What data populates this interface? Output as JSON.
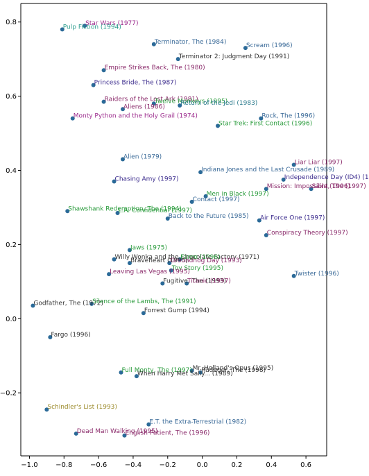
{
  "chart_data": {
    "type": "scatter",
    "title": "",
    "xlabel": "",
    "ylabel": "",
    "xlim": [
      -1.05,
      0.72
    ],
    "ylim": [
      -0.37,
      0.85
    ],
    "grid": false,
    "x_ticks": [
      -1.0,
      -0.8,
      -0.6,
      -0.4,
      -0.2,
      0.0,
      0.2,
      0.4,
      0.6
    ],
    "x_tick_labels": [
      "−1.0",
      "−0.8",
      "−0.6",
      "−0.4",
      "−0.2",
      "0.0",
      "0.2",
      "0.4",
      "0.6"
    ],
    "y_ticks": [
      -0.2,
      0.0,
      0.2,
      0.4,
      0.6,
      0.8
    ],
    "y_tick_labels": [
      "−0.2",
      "0.0",
      "0.2",
      "0.4",
      "0.6",
      "0.8"
    ],
    "point_color": "#2b6a98",
    "points": [
      {
        "label": "Star Wars (1977)",
        "x": -0.68,
        "y": 0.79,
        "color": "#9b2a8c"
      },
      {
        "label": "Pulp Fiction (1994)",
        "x": -0.81,
        "y": 0.78,
        "color": "#2a9b8c"
      },
      {
        "label": "Terminator, The (1984)",
        "x": -0.28,
        "y": 0.74,
        "color": "#3a6a98"
      },
      {
        "label": "Scream (1996)",
        "x": 0.25,
        "y": 0.73,
        "color": "#3a6a98"
      },
      {
        "label": "Terminator 2: Judgment Day (1991)",
        "x": -0.14,
        "y": 0.7,
        "color": "#333333"
      },
      {
        "label": "Empire Strikes Back, The (1980)",
        "x": -0.57,
        "y": 0.67,
        "color": "#8a2a6a"
      },
      {
        "label": "Princess Bride, The (1987)",
        "x": -0.63,
        "y": 0.63,
        "color": "#3a2a8c"
      },
      {
        "label": "Raiders of the Lost Ark (1981)",
        "x": -0.57,
        "y": 0.585,
        "color": "#8a2a6a"
      },
      {
        "label": "Twelve Monkeys (1995)",
        "x": -0.28,
        "y": 0.58,
        "color": "#2a9b3c"
      },
      {
        "label": "Return of the Jedi (1983)",
        "x": -0.13,
        "y": 0.575,
        "color": "#2a7a8c"
      },
      {
        "label": "Aliens (1986)",
        "x": -0.46,
        "y": 0.565,
        "color": "#8a2a6a"
      },
      {
        "label": "Monty Python and the Holy Grail (1974)",
        "x": -0.75,
        "y": 0.54,
        "color": "#9b2a8c"
      },
      {
        "label": "Rock, The (1996)",
        "x": 0.34,
        "y": 0.54,
        "color": "#3a6a98"
      },
      {
        "label": "Star Trek: First Contact (1996)",
        "x": 0.09,
        "y": 0.52,
        "color": "#2a9b3c"
      },
      {
        "label": "Alien (1979)",
        "x": -0.46,
        "y": 0.43,
        "color": "#3a6a98"
      },
      {
        "label": "Liar Liar (1997)",
        "x": 0.53,
        "y": 0.415,
        "color": "#8a2a6a"
      },
      {
        "label": "Indiana Jones and the Last Crusade (1989)",
        "x": -0.01,
        "y": 0.395,
        "color": "#3a6a98"
      },
      {
        "label": "Independence Day (ID4) (1996)",
        "x": 0.47,
        "y": 0.375,
        "color": "#3a2a8c"
      },
      {
        "label": "Chasing Amy (1997)",
        "x": -0.51,
        "y": 0.37,
        "color": "#3a2a8c"
      },
      {
        "label": "Mission: Impossible (1996)",
        "x": 0.37,
        "y": 0.35,
        "color": "#8a2a6a"
      },
      {
        "label": "Saint, The (1997)",
        "x": 0.63,
        "y": 0.35,
        "color": "#8a2a6a"
      },
      {
        "label": "Men in Black (1997)",
        "x": 0.02,
        "y": 0.33,
        "color": "#2a9b3c"
      },
      {
        "label": "Contact (1997)",
        "x": -0.06,
        "y": 0.315,
        "color": "#3a6a98"
      },
      {
        "label": "Shawshank Redemption, The (1994)",
        "x": -0.78,
        "y": 0.29,
        "color": "#2a9b3c"
      },
      {
        "label": "L.A. Confidential (1997)",
        "x": -0.49,
        "y": 0.285,
        "color": "#2a9b3c"
      },
      {
        "label": "Back to the Future (1985)",
        "x": -0.2,
        "y": 0.27,
        "color": "#3a6a98"
      },
      {
        "label": "Air Force One (1997)",
        "x": 0.33,
        "y": 0.265,
        "color": "#3a2a8c"
      },
      {
        "label": "Conspiracy Theory (1997)",
        "x": 0.37,
        "y": 0.225,
        "color": "#8a2a6a"
      },
      {
        "label": "Jaws (1975)",
        "x": -0.42,
        "y": 0.185,
        "color": "#2a9b3c"
      },
      {
        "label": "Willy Wonka and the Chocolate Factory (1971)",
        "x": -0.51,
        "y": 0.16,
        "color": "#333333"
      },
      {
        "label": "Fargo (1996)",
        "x": -0.13,
        "y": 0.16,
        "color": "#2a9b3c"
      },
      {
        "label": "Braveheart (1995)",
        "x": -0.42,
        "y": 0.15,
        "color": "#333333"
      },
      {
        "label": "Groundhog Day (1993)",
        "x": -0.19,
        "y": 0.15,
        "color": "#8a2a6a"
      },
      {
        "label": "Toy Story (1995)",
        "x": -0.18,
        "y": 0.13,
        "color": "#2a9b3c"
      },
      {
        "label": "Leaving Las Vegas (1995)",
        "x": -0.54,
        "y": 0.12,
        "color": "#8a2a6a"
      },
      {
        "label": "Fugitive, The (1993)",
        "x": -0.23,
        "y": 0.095,
        "color": "#333333"
      },
      {
        "label": "Titanic (1997)",
        "x": -0.09,
        "y": 0.095,
        "color": "#8a2a6a"
      },
      {
        "label": "Twister (1996)",
        "x": 0.53,
        "y": 0.115,
        "color": "#3a6a98"
      },
      {
        "label": "Godfather, The (1972)",
        "x": -0.98,
        "y": 0.035,
        "color": "#333333"
      },
      {
        "label": "Silence of the Lambs, The (1991)",
        "x": -0.64,
        "y": 0.04,
        "color": "#2a9b3c"
      },
      {
        "label": "Forrest Gump (1994)",
        "x": -0.34,
        "y": 0.015,
        "color": "#333333"
      },
      {
        "label": "Fargo (1996)",
        "x": -0.88,
        "y": -0.05,
        "color": "#333333"
      },
      {
        "label": "Full Monty, The (1997)",
        "x": -0.47,
        "y": -0.145,
        "color": "#2a9b3c"
      },
      {
        "label": "When Harry Met Sally... (1989)",
        "x": -0.38,
        "y": -0.155,
        "color": "#333333"
      },
      {
        "label": "Mr. Holland's Opus (1995)",
        "x": -0.06,
        "y": -0.14,
        "color": "#333333"
      },
      {
        "label": "Rudeger, The (1998)",
        "x": -0.01,
        "y": -0.145,
        "color": "#333333"
      },
      {
        "label": "Schindler's List (1993)",
        "x": -0.9,
        "y": -0.245,
        "color": "#9b8a2a"
      },
      {
        "label": "E.T. the Extra-Terrestrial (1982)",
        "x": -0.31,
        "y": -0.285,
        "color": "#3a6a98"
      },
      {
        "label": "Dead Man Walking (1995)",
        "x": -0.73,
        "y": -0.31,
        "color": "#8a2a6a"
      },
      {
        "label": "English Patient, The (1996)",
        "x": -0.45,
        "y": -0.315,
        "color": "#8a2a6a"
      }
    ]
  }
}
